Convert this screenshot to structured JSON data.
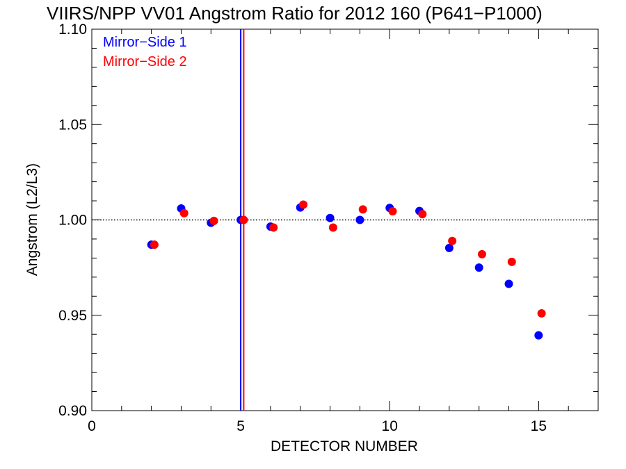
{
  "chart_data": {
    "type": "scatter",
    "title": "VIIRS/NPP VV01 Angstrom Ratio for 2012 160 (P641−P1000)",
    "xlabel": "DETECTOR NUMBER",
    "ylabel": "Angstrom (L2/L3)",
    "xlim": [
      0,
      17
    ],
    "ylim": [
      0.9,
      1.1
    ],
    "x_ticks": [
      0,
      5,
      10,
      15
    ],
    "x_tick_labels": [
      "0",
      "5",
      "10",
      "15"
    ],
    "y_ticks": [
      0.9,
      0.95,
      1.0,
      1.05,
      1.1
    ],
    "y_tick_labels": [
      "0.90",
      "0.95",
      "1.00",
      "1.05",
      "1.10"
    ],
    "reference_line": {
      "y": 1.0,
      "style": "dotted"
    },
    "vertical_lines": [
      {
        "x": 5.0,
        "color": "#0000ff"
      },
      {
        "x": 5.1,
        "color": "#ff0000"
      }
    ],
    "legend": {
      "position": "top-left"
    },
    "series": [
      {
        "name": "Mirror−Side 1",
        "color": "#0000ff",
        "x": [
          2,
          3,
          4,
          5,
          6,
          7,
          8,
          9,
          10,
          11,
          12,
          13,
          14,
          15
        ],
        "values": [
          0.987,
          1.006,
          0.9985,
          1.0,
          0.9965,
          1.0065,
          1.001,
          1.0,
          1.0063,
          1.0047,
          0.9853,
          0.975,
          0.9665,
          0.9395
        ]
      },
      {
        "name": "Mirror−Side 2",
        "color": "#ff0000",
        "x": [
          2.1,
          3.1,
          4.1,
          5.1,
          6.1,
          7.1,
          8.1,
          9.1,
          10.1,
          11.1,
          12.1,
          13.1,
          14.1,
          15.1
        ],
        "values": [
          0.987,
          1.0035,
          0.9995,
          1.0,
          0.996,
          1.008,
          0.996,
          1.0055,
          1.0045,
          1.003,
          0.989,
          0.982,
          0.978,
          0.951
        ]
      }
    ]
  }
}
